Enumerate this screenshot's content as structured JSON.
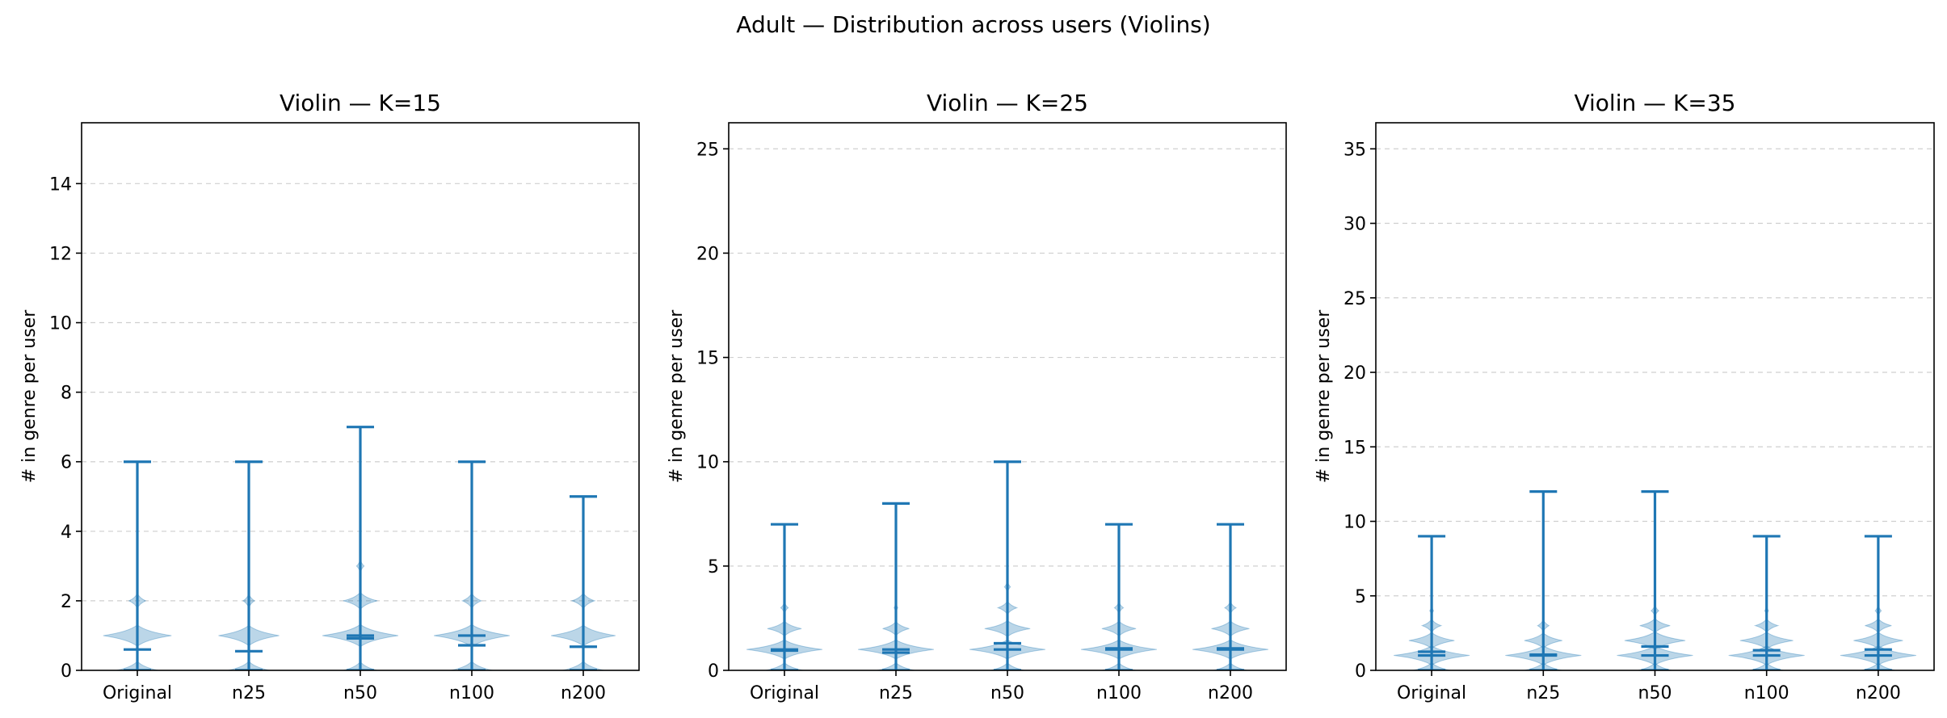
{
  "figure": {
    "suptitle": "Adult — Distribution across users (Violins)"
  },
  "chart_data": [
    {
      "type": "violin",
      "title": "Violin — K=15",
      "ylabel": "# in genre per user",
      "ylim": [
        0,
        15.75
      ],
      "yticks": [
        0,
        2,
        4,
        6,
        8,
        10,
        12,
        14
      ],
      "grid": true,
      "categories": [
        "Original",
        "n25",
        "n50",
        "n100",
        "n200"
      ],
      "violins": [
        {
          "min": 0,
          "max": 6,
          "mean": 0.6,
          "median": 0,
          "density": [
            [
              0,
              0.55
            ],
            [
              1,
              0.9
            ],
            [
              2,
              0.22
            ]
          ]
        },
        {
          "min": 0,
          "max": 6,
          "mean": 0.55,
          "median": 0,
          "density": [
            [
              0,
              0.55
            ],
            [
              1,
              0.8
            ],
            [
              2,
              0.15
            ]
          ]
        },
        {
          "min": 0,
          "max": 7,
          "mean": 0.92,
          "median": 1,
          "density": [
            [
              0,
              0.45
            ],
            [
              1,
              1.0
            ],
            [
              2,
              0.45
            ],
            [
              3,
              0.1
            ]
          ]
        },
        {
          "min": 0,
          "max": 6,
          "mean": 0.72,
          "median": 1,
          "density": [
            [
              0,
              0.55
            ],
            [
              1,
              1.0
            ],
            [
              2,
              0.25
            ]
          ]
        },
        {
          "min": 0,
          "max": 5,
          "mean": 0.68,
          "median": 0,
          "density": [
            [
              0,
              0.55
            ],
            [
              1,
              0.85
            ],
            [
              2,
              0.3
            ]
          ]
        }
      ]
    },
    {
      "type": "violin",
      "title": "Violin — K=25",
      "ylabel": "# in genre per user",
      "ylim": [
        0,
        26.25
      ],
      "yticks": [
        0,
        5,
        10,
        15,
        20,
        25
      ],
      "grid": true,
      "categories": [
        "Original",
        "n25",
        "n50",
        "n100",
        "n200"
      ],
      "violins": [
        {
          "min": 0,
          "max": 7,
          "mean": 0.95,
          "median": 1,
          "density": [
            [
              0,
              0.5
            ],
            [
              1,
              1.0
            ],
            [
              2,
              0.45
            ],
            [
              3,
              0.1
            ]
          ]
        },
        {
          "min": 0,
          "max": 8,
          "mean": 0.85,
          "median": 1,
          "density": [
            [
              0,
              0.5
            ],
            [
              1,
              1.0
            ],
            [
              2,
              0.35
            ],
            [
              3,
              0.05
            ]
          ]
        },
        {
          "min": 0,
          "max": 10,
          "mean": 1.3,
          "median": 1,
          "density": [
            [
              0,
              0.45
            ],
            [
              1,
              1.0
            ],
            [
              2,
              0.6
            ],
            [
              3,
              0.25
            ],
            [
              4,
              0.08
            ]
          ]
        },
        {
          "min": 0,
          "max": 7,
          "mean": 1.05,
          "median": 1,
          "density": [
            [
              0,
              0.45
            ],
            [
              1,
              1.0
            ],
            [
              2,
              0.45
            ],
            [
              3,
              0.12
            ]
          ]
        },
        {
          "min": 0,
          "max": 7,
          "mean": 1.05,
          "median": 1,
          "density": [
            [
              0,
              0.45
            ],
            [
              1,
              1.0
            ],
            [
              2,
              0.5
            ],
            [
              3,
              0.15
            ]
          ]
        }
      ]
    },
    {
      "type": "violin",
      "title": "Violin — K=35",
      "ylabel": "# in genre per user",
      "ylim": [
        0,
        36.75
      ],
      "yticks": [
        0,
        5,
        10,
        15,
        20,
        25,
        30,
        35
      ],
      "grid": true,
      "categories": [
        "Original",
        "n25",
        "n50",
        "n100",
        "n200"
      ],
      "violins": [
        {
          "min": 0,
          "max": 9,
          "mean": 1.25,
          "median": 1,
          "density": [
            [
              0,
              0.5
            ],
            [
              1,
              1.0
            ],
            [
              2,
              0.6
            ],
            [
              3,
              0.25
            ],
            [
              4,
              0.05
            ]
          ]
        },
        {
          "min": 0,
          "max": 12,
          "mean": 1.05,
          "median": 1,
          "density": [
            [
              0,
              0.5
            ],
            [
              1,
              1.0
            ],
            [
              2,
              0.5
            ],
            [
              3,
              0.15
            ]
          ]
        },
        {
          "min": 0,
          "max": 12,
          "mean": 1.6,
          "median": 1,
          "density": [
            [
              0,
              0.45
            ],
            [
              1,
              1.0
            ],
            [
              2,
              0.8
            ],
            [
              3,
              0.4
            ],
            [
              4,
              0.1
            ]
          ]
        },
        {
          "min": 0,
          "max": 9,
          "mean": 1.35,
          "median": 1,
          "density": [
            [
              0,
              0.45
            ],
            [
              1,
              1.0
            ],
            [
              2,
              0.7
            ],
            [
              3,
              0.3
            ],
            [
              4,
              0.05
            ]
          ]
        },
        {
          "min": 0,
          "max": 9,
          "mean": 1.4,
          "median": 1,
          "density": [
            [
              0,
              0.45
            ],
            [
              1,
              1.0
            ],
            [
              2,
              0.65
            ],
            [
              3,
              0.35
            ],
            [
              4,
              0.08
            ]
          ]
        }
      ]
    }
  ]
}
